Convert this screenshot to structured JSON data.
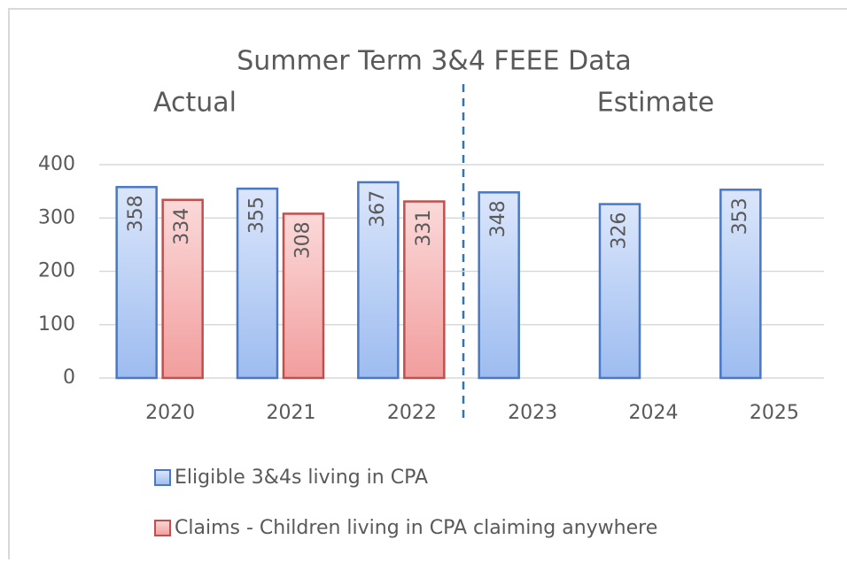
{
  "chart_data": {
    "type": "bar",
    "title": "Summer Term 3&4 FEEE Data",
    "annotations": [
      "Actual",
      "Estimate"
    ],
    "categories": [
      "2020",
      "2021",
      "2022",
      "2023",
      "2024",
      "2025"
    ],
    "series": [
      {
        "name": "Eligible 3&4s living in CPA",
        "color": "#4a78c2",
        "values": [
          358,
          355,
          367,
          348,
          326,
          353
        ]
      },
      {
        "name": "Claims - Children living in CPA claiming anywhere",
        "color": "#c0504d",
        "values": [
          334,
          308,
          331,
          null,
          null,
          null
        ]
      }
    ],
    "ylim": [
      0,
      400
    ],
    "yticks": [
      0,
      100,
      200,
      300,
      400
    ],
    "grid": true,
    "legend": "bottom"
  }
}
